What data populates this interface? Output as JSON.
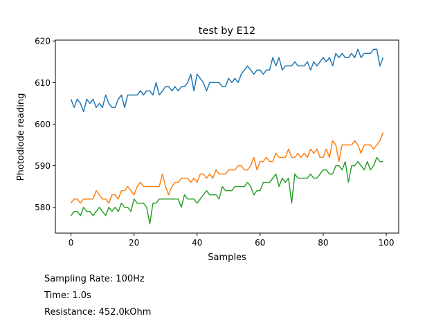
{
  "chart_data": {
    "type": "line",
    "title": "test by E12",
    "xlabel": "Samples",
    "ylabel": "Photodiode reading",
    "xlim": [
      -4.95,
      103.95
    ],
    "ylim": [
      573.8,
      620.2
    ],
    "xticks": [
      0,
      20,
      40,
      60,
      80,
      100
    ],
    "yticks": [
      580,
      590,
      600,
      610,
      620
    ],
    "grid": false,
    "legend": "none",
    "series": [
      {
        "color": "#1f77b4",
        "values": [
          606,
          604,
          606,
          605,
          603,
          606,
          605,
          606,
          604,
          605,
          604,
          607,
          605,
          604,
          604,
          606,
          607,
          604,
          607,
          607,
          607,
          607,
          608,
          607,
          608,
          608,
          607,
          610,
          607,
          608,
          609,
          609,
          608,
          609,
          608,
          609,
          609,
          610,
          612,
          608,
          612,
          611,
          610,
          608,
          610,
          610,
          610,
          610,
          609,
          609,
          611,
          610,
          611,
          610,
          612,
          613,
          614,
          613,
          612,
          613,
          613,
          612,
          613,
          613,
          616,
          614,
          616,
          613,
          614,
          614,
          614,
          615,
          614,
          614,
          614,
          615,
          613,
          615,
          614,
          615,
          616,
          615,
          616,
          614,
          617,
          616,
          617,
          616,
          616,
          617,
          616,
          618,
          616,
          617,
          617,
          617,
          618,
          618,
          614,
          616
        ]
      },
      {
        "color": "#ff7f0e",
        "values": [
          581,
          582,
          582,
          581,
          582,
          582,
          582,
          582,
          584,
          583,
          582,
          582,
          581,
          583,
          583,
          582,
          584,
          584,
          585,
          584,
          583,
          585,
          586,
          585,
          585,
          585,
          585,
          585,
          585,
          588,
          585,
          583,
          585,
          586,
          586,
          587,
          587,
          587,
          586,
          587,
          586,
          588,
          588,
          587,
          588,
          587,
          589,
          588,
          588,
          588,
          589,
          589,
          589,
          590,
          590,
          589,
          589,
          590,
          592,
          589,
          591,
          591,
          592,
          591,
          591,
          593,
          592,
          592,
          592,
          594,
          592,
          592,
          593,
          592,
          593,
          592,
          594,
          593,
          594,
          592,
          592,
          594,
          592,
          596,
          595,
          591,
          595,
          595,
          595,
          595,
          596,
          595,
          593,
          595,
          595,
          595,
          594,
          595,
          596,
          598
        ]
      },
      {
        "color": "#2ca02c",
        "values": [
          578,
          579,
          579,
          578,
          580,
          579,
          579,
          578,
          579,
          580,
          579,
          578,
          580,
          579,
          580,
          579,
          581,
          580,
          580,
          579,
          582,
          581,
          581,
          581,
          580,
          576,
          581,
          581,
          582,
          582,
          582,
          582,
          582,
          582,
          582,
          580,
          583,
          582,
          582,
          582,
          581,
          582,
          583,
          584,
          583,
          583,
          583,
          582,
          585,
          584,
          584,
          584,
          585,
          585,
          585,
          585,
          586,
          585,
          583,
          584,
          584,
          586,
          586,
          586,
          587,
          588,
          585,
          587,
          586,
          587,
          581,
          588,
          587,
          587,
          587,
          587,
          588,
          587,
          587,
          588,
          589,
          589,
          588,
          588,
          590,
          590,
          589,
          591,
          586,
          590,
          590,
          591,
          590,
          589,
          591,
          589,
          590,
          592,
          591,
          591
        ]
      }
    ]
  },
  "info": {
    "line1": "Sampling Rate: 100Hz",
    "line2": "Time: 1.0s",
    "line3": "Resistance: 452.0kOhm"
  }
}
